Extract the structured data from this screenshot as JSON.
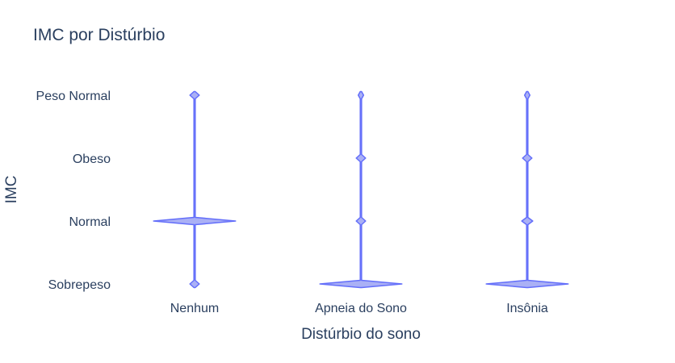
{
  "chart_data": {
    "type": "violin",
    "title": "IMC por Distúrbio",
    "xlabel": "Distúrbio do sono",
    "ylabel": "IMC",
    "color": "#636efa",
    "fill_color": "#aab0f5",
    "grid": false,
    "categories": [
      "Nenhum",
      "Apneia do Sono",
      "Insônia"
    ],
    "y_categories": [
      "Sobrepeso",
      "Normal",
      "Obeso",
      "Peso Normal"
    ],
    "violins": [
      {
        "category": "Nenhum",
        "densities": [
          0.1,
          1.0,
          0.0,
          0.1
        ]
      },
      {
        "category": "Apneia do Sono",
        "densities": [
          1.0,
          0.1,
          0.1,
          0.05
        ]
      },
      {
        "category": "Insônia",
        "densities": [
          1.0,
          0.12,
          0.1,
          0.05
        ]
      }
    ]
  }
}
